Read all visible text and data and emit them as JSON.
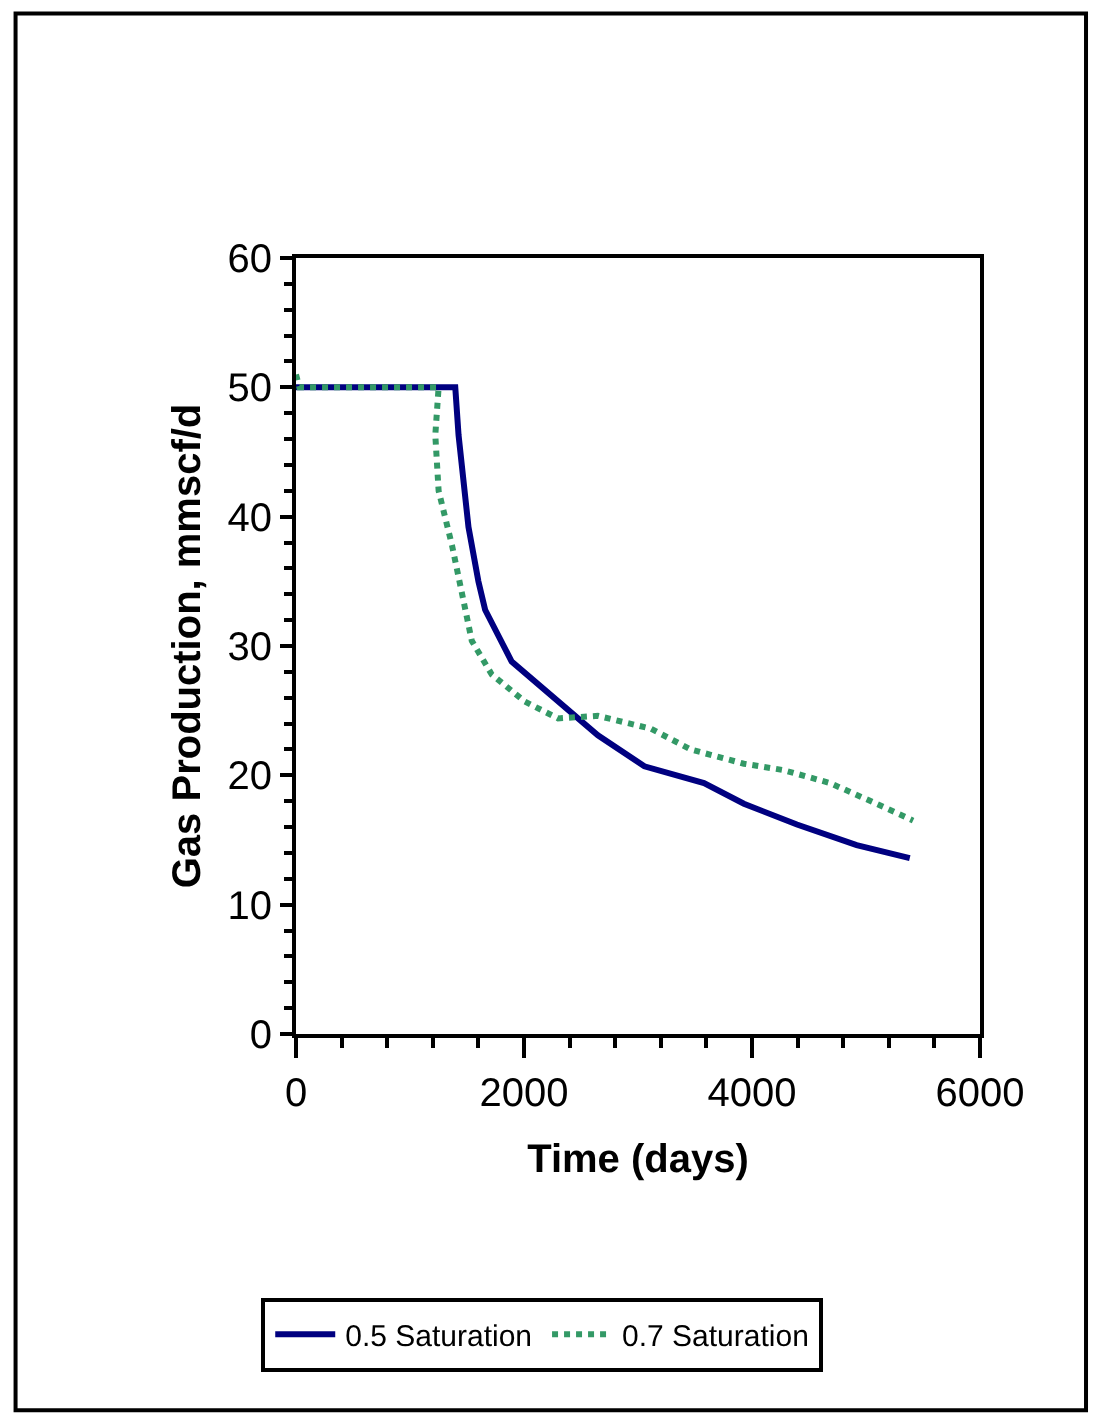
{
  "chart_data": {
    "type": "line",
    "xlabel": "Time (days)",
    "ylabel": "Gas Production, mmscf/d",
    "xlim": [
      0,
      6000
    ],
    "xticks": [
      0,
      2000,
      4000,
      6000
    ],
    "ylim": [
      0,
      60
    ],
    "yticks": [
      0,
      10,
      20,
      30,
      40,
      50,
      60
    ],
    "legend": "bottom",
    "marker": "none",
    "series": [
      {
        "name": "0.5 Saturation",
        "color": "#000080",
        "line_style": "solid",
        "x": [
          0,
          1397,
          1426,
          1513,
          1600,
          1659,
          1892,
          2648,
          3056,
          3579,
          3929,
          4394,
          4918,
          5384
        ],
        "values": [
          50,
          50,
          46.3,
          39.2,
          35,
          32.8,
          28.8,
          23.1,
          20.7,
          19.4,
          17.8,
          16.2,
          14.6,
          13.6
        ]
      },
      {
        "name": "0.7 Saturation",
        "color": "#339966",
        "line_style": "dotted",
        "x": [
          0,
          30,
          1251,
          1222,
          1251,
          1368,
          1455,
          1542,
          1717,
          2008,
          2299,
          2648,
          3114,
          3463,
          3929,
          4278,
          4686,
          5093,
          5413
        ],
        "values": [
          51,
          50,
          50,
          46.3,
          42,
          37.8,
          34.1,
          30.4,
          27.8,
          25.7,
          24.4,
          24.6,
          23.6,
          22,
          20.9,
          20.4,
          19.4,
          17.8,
          16.5
        ]
      }
    ]
  }
}
